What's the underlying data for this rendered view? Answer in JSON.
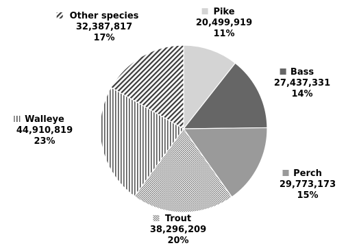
{
  "chart_data": {
    "type": "pie",
    "title": "",
    "slices": [
      {
        "label": "Pike",
        "value": 20499919,
        "value_text": "20,499,919",
        "percent_text": "11%",
        "pattern": "light-solid",
        "color": "#d4d4d4"
      },
      {
        "label": "Bass",
        "value": 27437331,
        "value_text": "27,437,331",
        "percent_text": "14%",
        "pattern": "dark-solid",
        "color": "#666666"
      },
      {
        "label": "Perch",
        "value": 29773173,
        "value_text": "29,773,173",
        "percent_text": "15%",
        "pattern": "medium-solid",
        "color": "#9a9a9a"
      },
      {
        "label": "Trout",
        "value": 38296209,
        "value_text": "38,296,209",
        "percent_text": "20%",
        "pattern": "fine-dots",
        "color": "#707070"
      },
      {
        "label": "Walleye",
        "value": 44910819,
        "value_text": "44,910,819",
        "percent_text": "23%",
        "pattern": "vertical-stripes",
        "color": "#555555"
      },
      {
        "label": "Other species",
        "value": 32387817,
        "value_text": "32,387,817",
        "percent_text": "17%",
        "pattern": "diagonal-stripes",
        "color": "#3a3a3a"
      }
    ],
    "legend": "inline-labels",
    "start_angle_deg": 0,
    "direction": "clockwise"
  }
}
